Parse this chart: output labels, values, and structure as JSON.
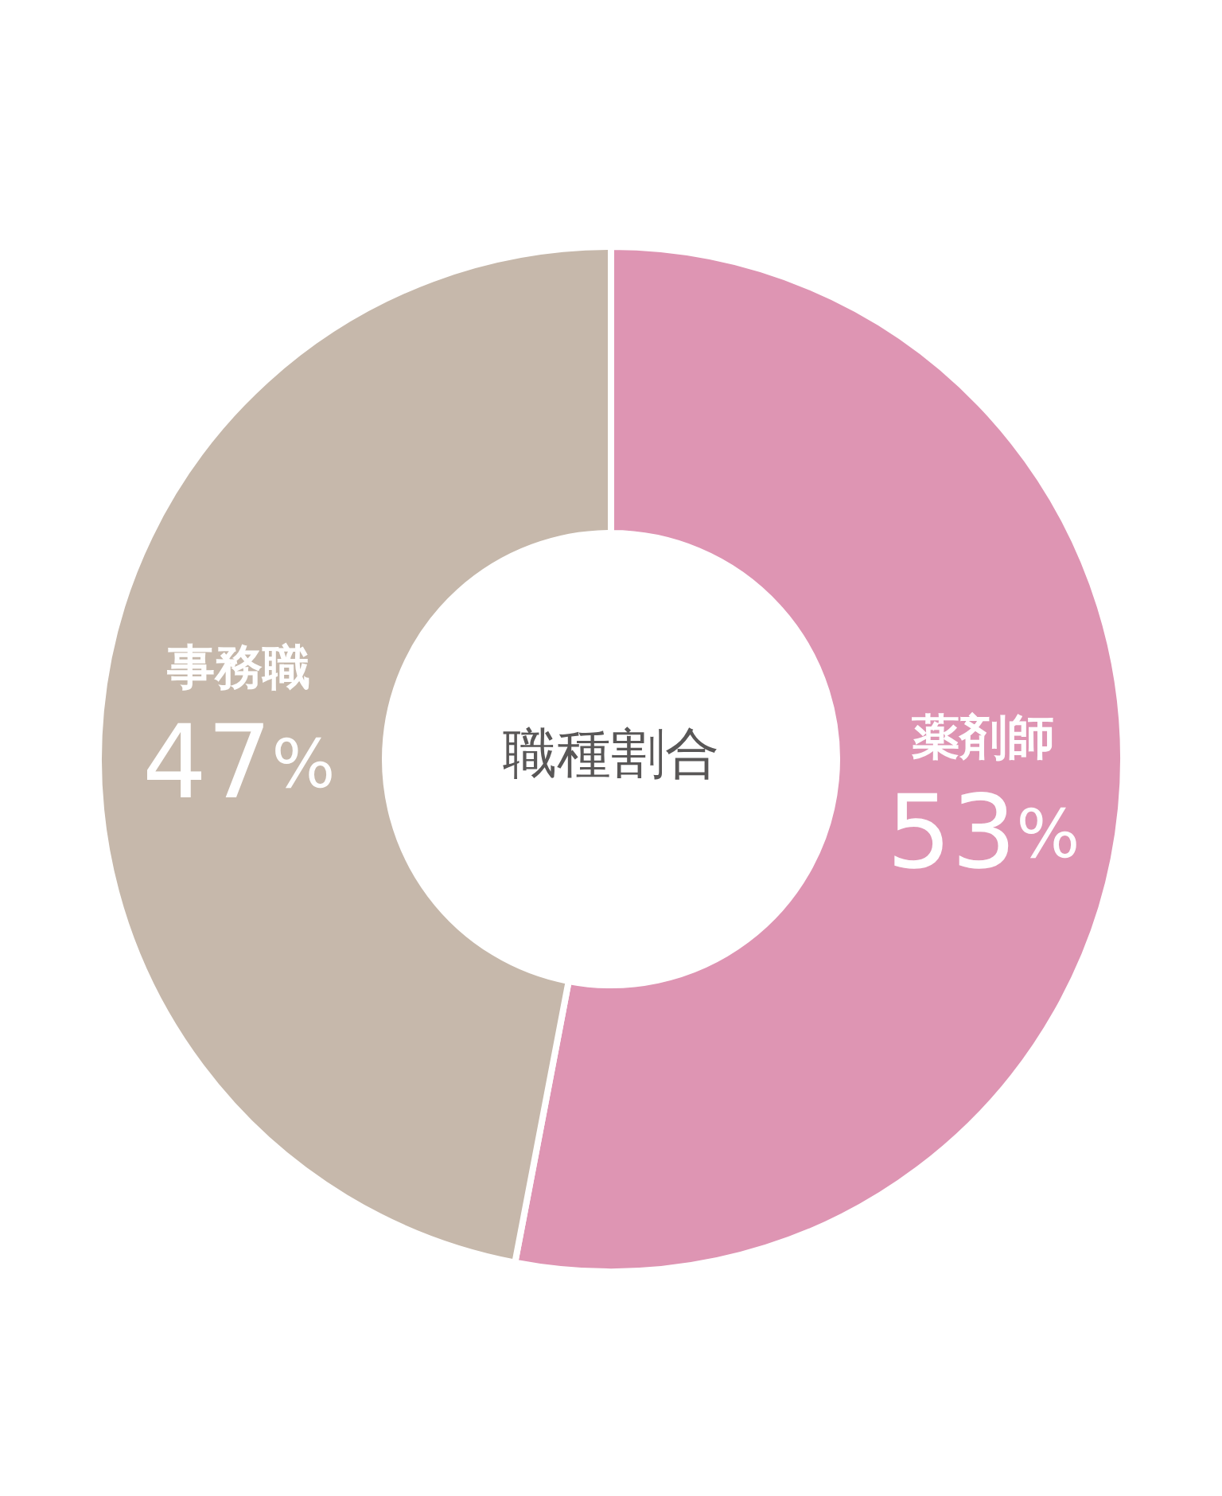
{
  "chart_data": {
    "type": "donut",
    "title": "職種割合",
    "categories": [
      "薬剤師",
      "事務職"
    ],
    "values": [
      53,
      47
    ],
    "colors": [
      "#de95b3",
      "#c6b8ab"
    ],
    "value_labels": [
      "53%",
      "47%"
    ],
    "legend": false
  }
}
